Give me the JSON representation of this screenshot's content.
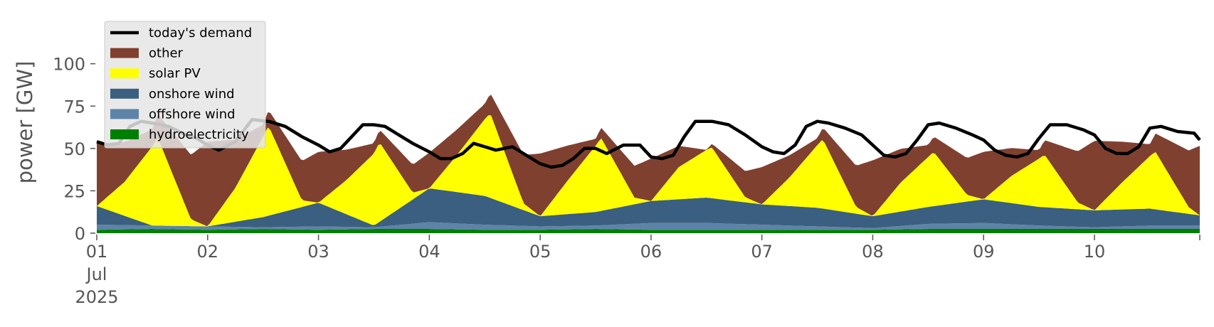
{
  "chart_data": {
    "type": "area",
    "stacked": true,
    "ylabel": "power [GW]",
    "xlabel": "",
    "ylim": [
      0,
      120
    ],
    "yticks": [
      0,
      25,
      50,
      75,
      100
    ],
    "xlim": [
      0,
      9.95
    ],
    "xtick_labels": [
      "01\nJul\n2025",
      "02",
      "03",
      "04",
      "05",
      "06",
      "07",
      "08",
      "09",
      "10"
    ],
    "grid": false,
    "legend_position": "top-left",
    "facecolor": "#ffffff",
    "series": [
      {
        "name": "hydroelectricity",
        "color": "#008000",
        "x": [
          0,
          0.5,
          1,
          1.5,
          2,
          2.5,
          3,
          3.5,
          4,
          4.5,
          5,
          5.5,
          6,
          6.5,
          7,
          7.5,
          8,
          8.5,
          9,
          9.5,
          9.95
        ],
        "values": [
          2,
          2.5,
          2,
          2.5,
          2,
          2.5,
          2.5,
          2,
          2,
          2.5,
          2,
          2,
          2,
          2,
          2,
          2.5,
          2.5,
          2.5,
          2.5,
          2.5,
          2.5
        ]
      },
      {
        "name": "offshore wind",
        "color": "#5d84a8",
        "x": [
          0,
          0.5,
          1,
          1.5,
          2,
          2.5,
          3,
          3.5,
          4,
          4.5,
          5,
          5.5,
          6,
          6.5,
          7,
          7.5,
          8,
          8.5,
          9,
          9.5,
          9.95
        ],
        "values": [
          3,
          2,
          2,
          1,
          2,
          1,
          4,
          3,
          2,
          2,
          4,
          4,
          3,
          2,
          1,
          3,
          3.5,
          2,
          1,
          2,
          2
        ]
      },
      {
        "name": "onshore wind",
        "color": "#3b5f80",
        "x": [
          0,
          0.5,
          1,
          1.5,
          2,
          2.5,
          3,
          3.5,
          4,
          4.5,
          5,
          5.5,
          6,
          6.5,
          7,
          7.5,
          8,
          8.5,
          9,
          9.5,
          9.95
        ],
        "values": [
          11,
          0,
          0,
          6,
          14,
          1,
          20,
          17,
          6,
          8,
          13,
          15,
          12,
          11,
          7,
          10,
          14,
          11,
          10,
          10,
          6
        ]
      },
      {
        "name": "solar PV",
        "color": "#ffff00",
        "x": [
          0,
          0.25,
          0.55,
          0.85,
          1,
          1.25,
          1.55,
          1.85,
          2,
          2.25,
          2.55,
          2.85,
          3,
          3.25,
          3.55,
          3.85,
          4,
          4.25,
          4.55,
          4.85,
          5,
          5.25,
          5.55,
          5.85,
          6,
          6.25,
          6.55,
          6.85,
          7,
          7.25,
          7.55,
          7.85,
          8,
          8.25,
          8.55,
          8.85,
          9,
          9.25,
          9.55,
          9.85,
          9.95
        ],
        "values": [
          0,
          20,
          52,
          4,
          0,
          20,
          53,
          4,
          0,
          20,
          47,
          4,
          0,
          22,
          50,
          4,
          0,
          20,
          43,
          4,
          0,
          19,
          30,
          3,
          0,
          17,
          41,
          4,
          0,
          17,
          32,
          4,
          0,
          16,
          31,
          4,
          0,
          16,
          34,
          4,
          0
        ]
      },
      {
        "name": "other",
        "color": "#804030",
        "x": [
          0,
          0.5,
          1,
          1.5,
          2,
          2.5,
          3,
          3.5,
          4,
          4.5,
          5,
          5.5,
          6,
          6.5,
          7,
          7.5,
          8,
          8.5,
          9,
          9.5,
          9.95
        ],
        "values": [
          37,
          10,
          50,
          7,
          30,
          6,
          21,
          9,
          37,
          4,
          25,
          0,
          22,
          4,
          33,
          7,
          28,
          5,
          41,
          7,
          41
        ]
      }
    ],
    "demand": {
      "name": "today's demand",
      "color": "#000000",
      "x": [
        0,
        0.1,
        0.2,
        0.3,
        0.4,
        0.5,
        0.65,
        0.8,
        0.9,
        1.0,
        1.1,
        1.25,
        1.4,
        1.55,
        1.7,
        1.85,
        2.0,
        2.1,
        2.2,
        2.3,
        2.4,
        2.5,
        2.6,
        2.7,
        2.85,
        3.0,
        3.1,
        3.2,
        3.3,
        3.4,
        3.5,
        3.6,
        3.75,
        3.85,
        4.0,
        4.1,
        4.2,
        4.3,
        4.4,
        4.5,
        4.6,
        4.75,
        4.9,
        5.0,
        5.1,
        5.2,
        5.3,
        5.4,
        5.55,
        5.7,
        5.85,
        6.0,
        6.1,
        6.2,
        6.3,
        6.4,
        6.5,
        6.6,
        6.75,
        6.9,
        7.0,
        7.1,
        7.2,
        7.3,
        7.4,
        7.5,
        7.6,
        7.75,
        7.9,
        8.0,
        8.1,
        8.2,
        8.3,
        8.4,
        8.5,
        8.6,
        8.75,
        8.9,
        9.0,
        9.1,
        9.2,
        9.3,
        9.4,
        9.5,
        9.6,
        9.75,
        9.9,
        9.95
      ],
      "values": [
        54,
        52,
        53,
        63,
        66,
        65,
        63,
        58,
        56,
        52,
        49,
        54,
        67,
        66,
        63,
        57,
        52,
        48,
        50,
        57,
        64,
        64,
        63,
        59,
        53,
        48,
        44,
        44,
        47,
        53,
        51,
        49,
        51,
        47,
        41,
        39,
        40,
        44,
        50,
        50,
        47,
        52,
        52,
        45,
        44,
        46,
        57,
        66,
        66,
        64,
        58,
        51,
        48,
        47,
        52,
        63,
        66,
        65,
        62,
        58,
        52,
        46,
        45,
        47,
        55,
        64,
        65,
        62,
        58,
        55,
        49,
        46,
        45,
        47,
        56,
        64,
        64,
        61,
        58,
        50,
        47,
        47,
        51,
        62,
        63,
        60,
        59,
        55
      ]
    }
  }
}
